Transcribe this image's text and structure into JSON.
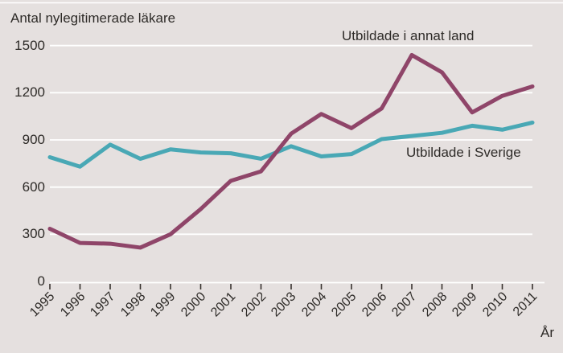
{
  "page": {
    "background_color": "#e5e0df",
    "top_border_color": "#ffffff",
    "text_color": "#2e2b28",
    "tick_color": "#38322e"
  },
  "chart_data": {
    "type": "line",
    "title": "Antal nylegitimerade läkare",
    "xlabel": "År",
    "ylabel": "",
    "x": [
      1995,
      1996,
      1997,
      1998,
      1999,
      2000,
      2001,
      2002,
      2003,
      2004,
      2005,
      2006,
      2007,
      2008,
      2009,
      2010,
      2011
    ],
    "series": [
      {
        "name": "Utbildade i annat land",
        "color": "#8f4569",
        "values": [
          335,
          245,
          240,
          215,
          300,
          460,
          640,
          700,
          940,
          1065,
          975,
          1100,
          1440,
          1330,
          1075,
          1180,
          1240
        ]
      },
      {
        "name": "Utbildade i Sverige",
        "color": "#49a8b5",
        "values": [
          790,
          730,
          870,
          780,
          840,
          820,
          815,
          780,
          860,
          795,
          810,
          905,
          925,
          945,
          990,
          965,
          1010
        ]
      }
    ],
    "ylim": [
      0,
      1500
    ],
    "yticks": [
      0,
      300,
      600,
      900,
      1200,
      1500
    ],
    "grid": true,
    "gridline_color": "#ffffff",
    "legend_position": "inline-labels-near-lines",
    "x_tick_rotation_deg": 45
  }
}
